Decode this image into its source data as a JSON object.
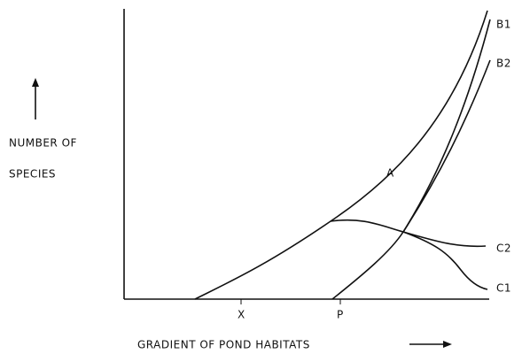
{
  "y_axis_label": [
    "NUMBER OF",
    "SPECIES"
  ],
  "x_axis_label": "GRADIENT OF POND HABITATS",
  "x_markers": [
    "X",
    "P"
  ],
  "curve_labels": {
    "b1": "B1",
    "b2": "B2",
    "a": "A",
    "c2": "C2",
    "c1": "C1"
  }
}
